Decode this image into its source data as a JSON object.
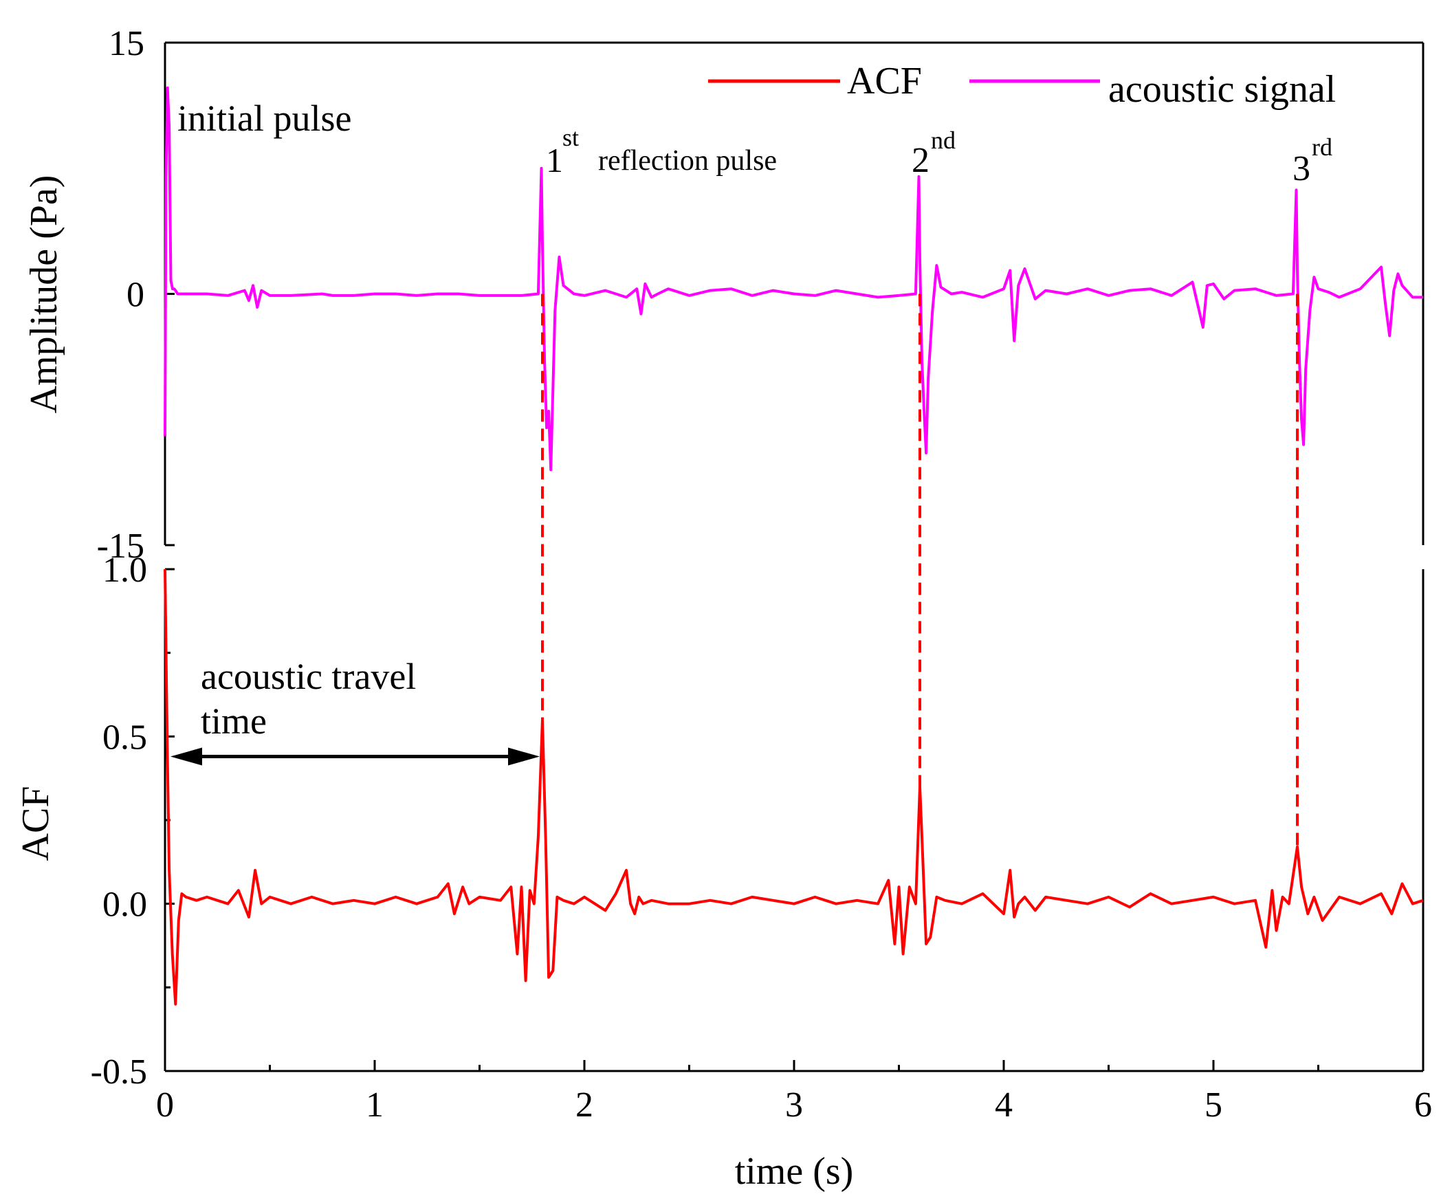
{
  "colors": {
    "acf": "#ff0000",
    "acoustic": "#ff00ff",
    "axis": "#000000",
    "arrow": "#000000"
  },
  "chart_data": [
    {
      "type": "line",
      "panel": "top",
      "ylabel": "Amplitude (Pa)",
      "ylim": [
        -15,
        15
      ],
      "xlim": [
        0,
        6
      ],
      "yticks": [
        {
          "v": 15,
          "label": "15"
        },
        {
          "v": 0,
          "label": "0"
        },
        {
          "v": -15,
          "label": "-15"
        }
      ],
      "series": [
        {
          "name": "acoustic signal",
          "color": "#ff00ff",
          "x": [
            0.0,
            0.005,
            0.012,
            0.02,
            0.028,
            0.036,
            0.044,
            0.05,
            0.06,
            0.1,
            0.2,
            0.3,
            0.38,
            0.4,
            0.42,
            0.44,
            0.46,
            0.5,
            0.6,
            0.75,
            0.8,
            0.9,
            1.0,
            1.1,
            1.2,
            1.3,
            1.4,
            1.5,
            1.6,
            1.7,
            1.78,
            1.795,
            1.8,
            1.81,
            1.82,
            1.83,
            1.84,
            1.86,
            1.88,
            1.9,
            1.95,
            2.0,
            2.1,
            2.2,
            2.25,
            2.27,
            2.29,
            2.32,
            2.35,
            2.4,
            2.5,
            2.6,
            2.7,
            2.8,
            2.9,
            3.0,
            3.1,
            3.2,
            3.3,
            3.4,
            3.5,
            3.58,
            3.595,
            3.6,
            3.61,
            3.62,
            3.63,
            3.64,
            3.66,
            3.68,
            3.7,
            3.75,
            3.8,
            3.9,
            4.0,
            4.03,
            4.05,
            4.07,
            4.1,
            4.15,
            4.2,
            4.3,
            4.4,
            4.5,
            4.6,
            4.7,
            4.8,
            4.9,
            4.95,
            4.97,
            5.0,
            5.05,
            5.1,
            5.2,
            5.3,
            5.38,
            5.395,
            5.4,
            5.41,
            5.42,
            5.43,
            5.44,
            5.46,
            5.48,
            5.5,
            5.55,
            5.6,
            5.7,
            5.8,
            5.82,
            5.84,
            5.86,
            5.88,
            5.9,
            5.95,
            6.0
          ],
          "y": [
            -8.5,
            7.0,
            12.3,
            10.0,
            0.8,
            0.3,
            0.3,
            0.2,
            0.0,
            0.0,
            0.0,
            -0.1,
            0.2,
            -0.4,
            0.5,
            -0.8,
            0.2,
            -0.1,
            -0.1,
            0.0,
            -0.1,
            -0.1,
            0.0,
            0.0,
            -0.1,
            0.0,
            0.0,
            -0.1,
            -0.1,
            -0.1,
            0.0,
            7.5,
            3.0,
            -4.0,
            -8.0,
            -7.0,
            -10.5,
            -1.0,
            2.2,
            0.5,
            0.0,
            -0.1,
            0.2,
            -0.2,
            0.3,
            -1.2,
            0.6,
            -0.2,
            0.0,
            0.3,
            -0.1,
            0.2,
            0.3,
            -0.1,
            0.2,
            0.0,
            -0.1,
            0.2,
            0.0,
            -0.2,
            -0.1,
            0.0,
            7.0,
            2.0,
            -4.0,
            -7.0,
            -9.5,
            -5.0,
            -1.0,
            1.7,
            0.4,
            0.0,
            0.1,
            -0.2,
            0.3,
            1.4,
            -2.8,
            0.5,
            1.5,
            -0.3,
            0.2,
            0.0,
            0.3,
            -0.1,
            0.2,
            0.3,
            -0.1,
            0.7,
            -2.0,
            0.5,
            0.6,
            -0.3,
            0.2,
            0.3,
            -0.1,
            0.0,
            6.2,
            1.5,
            -4.0,
            -7.5,
            -9.0,
            -4.5,
            -1.0,
            1.0,
            0.3,
            0.1,
            -0.2,
            0.3,
            1.6,
            -0.6,
            -2.5,
            0.2,
            1.2,
            0.5,
            -0.2,
            -0.2
          ]
        }
      ]
    },
    {
      "type": "line",
      "panel": "bottom",
      "title": "",
      "xlabel": "time (s)",
      "ylabel": "ACF",
      "xlim": [
        0,
        6
      ],
      "ylim": [
        -0.5,
        1.0
      ],
      "xticks": [
        {
          "v": 0,
          "label": "0"
        },
        {
          "v": 1,
          "label": "1"
        },
        {
          "v": 2,
          "label": "2"
        },
        {
          "v": 3,
          "label": "3"
        },
        {
          "v": 4,
          "label": "4"
        },
        {
          "v": 5,
          "label": "5"
        },
        {
          "v": 6,
          "label": "6"
        }
      ],
      "yticks": [
        {
          "v": 1.0,
          "label": "1.0"
        },
        {
          "v": 0.5,
          "label": "0.5"
        },
        {
          "v": 0.0,
          "label": "0.0"
        },
        {
          "v": -0.5,
          "label": "-0.5"
        }
      ],
      "series": [
        {
          "name": "ACF",
          "color": "#ff0000",
          "x": [
            0.0,
            0.01,
            0.02,
            0.035,
            0.05,
            0.065,
            0.08,
            0.1,
            0.15,
            0.2,
            0.25,
            0.3,
            0.35,
            0.4,
            0.43,
            0.46,
            0.5,
            0.6,
            0.7,
            0.8,
            0.9,
            1.0,
            1.1,
            1.2,
            1.3,
            1.35,
            1.38,
            1.42,
            1.45,
            1.5,
            1.6,
            1.65,
            1.68,
            1.7,
            1.72,
            1.74,
            1.76,
            1.78,
            1.8,
            1.815,
            1.83,
            1.85,
            1.87,
            1.9,
            1.95,
            2.0,
            2.1,
            2.15,
            2.2,
            2.22,
            2.24,
            2.26,
            2.28,
            2.32,
            2.4,
            2.5,
            2.6,
            2.7,
            2.8,
            2.9,
            3.0,
            3.1,
            3.2,
            3.3,
            3.4,
            3.45,
            3.48,
            3.5,
            3.52,
            3.55,
            3.58,
            3.6,
            3.61,
            3.63,
            3.65,
            3.68,
            3.72,
            3.8,
            3.9,
            4.0,
            4.03,
            4.05,
            4.07,
            4.1,
            4.15,
            4.2,
            4.3,
            4.4,
            4.5,
            4.6,
            4.7,
            4.8,
            4.9,
            5.0,
            5.1,
            5.2,
            5.25,
            5.28,
            5.3,
            5.33,
            5.36,
            5.4,
            5.42,
            5.45,
            5.48,
            5.52,
            5.6,
            5.7,
            5.8,
            5.85,
            5.9,
            5.95,
            6.0
          ],
          "y": [
            1.0,
            0.5,
            0.1,
            -0.15,
            -0.3,
            -0.05,
            0.03,
            0.02,
            0.01,
            0.02,
            0.01,
            0.0,
            0.04,
            -0.04,
            0.1,
            0.0,
            0.02,
            0.0,
            0.02,
            0.0,
            0.01,
            0.0,
            0.02,
            0.0,
            0.02,
            0.06,
            -0.03,
            0.05,
            0.0,
            0.02,
            0.01,
            0.05,
            -0.15,
            0.05,
            -0.23,
            0.04,
            0.0,
            0.2,
            0.55,
            0.2,
            -0.22,
            -0.2,
            0.02,
            0.01,
            0.0,
            0.02,
            -0.02,
            0.03,
            0.1,
            0.0,
            -0.03,
            0.02,
            0.0,
            0.01,
            0.0,
            0.0,
            0.01,
            0.0,
            0.02,
            0.01,
            0.0,
            0.02,
            0.0,
            0.01,
            0.0,
            0.07,
            -0.12,
            0.05,
            -0.15,
            0.05,
            0.0,
            0.35,
            0.2,
            -0.12,
            -0.1,
            0.02,
            0.01,
            0.0,
            0.03,
            -0.03,
            0.1,
            -0.04,
            0.0,
            0.02,
            -0.02,
            0.02,
            0.01,
            0.0,
            0.02,
            -0.01,
            0.03,
            0.0,
            0.01,
            0.02,
            0.0,
            0.01,
            -0.13,
            0.04,
            -0.08,
            0.02,
            0.0,
            0.17,
            0.05,
            -0.03,
            0.02,
            -0.05,
            0.02,
            0.0,
            0.03,
            -0.03,
            0.06,
            0.0,
            0.01
          ]
        }
      ]
    }
  ],
  "legend": {
    "acf_label": "ACF",
    "acoustic_label": "acoustic signal"
  },
  "annotations": {
    "initial": "initial pulse",
    "first_num": "1",
    "first_sup": "st",
    "first_rest": "reflection pulse",
    "second_num": "2",
    "second_sup": "nd",
    "third_num": "3",
    "third_sup": "rd",
    "travel_line1": "acoustic travel",
    "travel_line2": "time"
  },
  "markers": {
    "reflection_times": [
      1.8,
      3.6,
      5.4
    ],
    "arrow_from_x": 0.0,
    "arrow_to_x": 1.8,
    "arrow_y_acf": 0.44
  }
}
